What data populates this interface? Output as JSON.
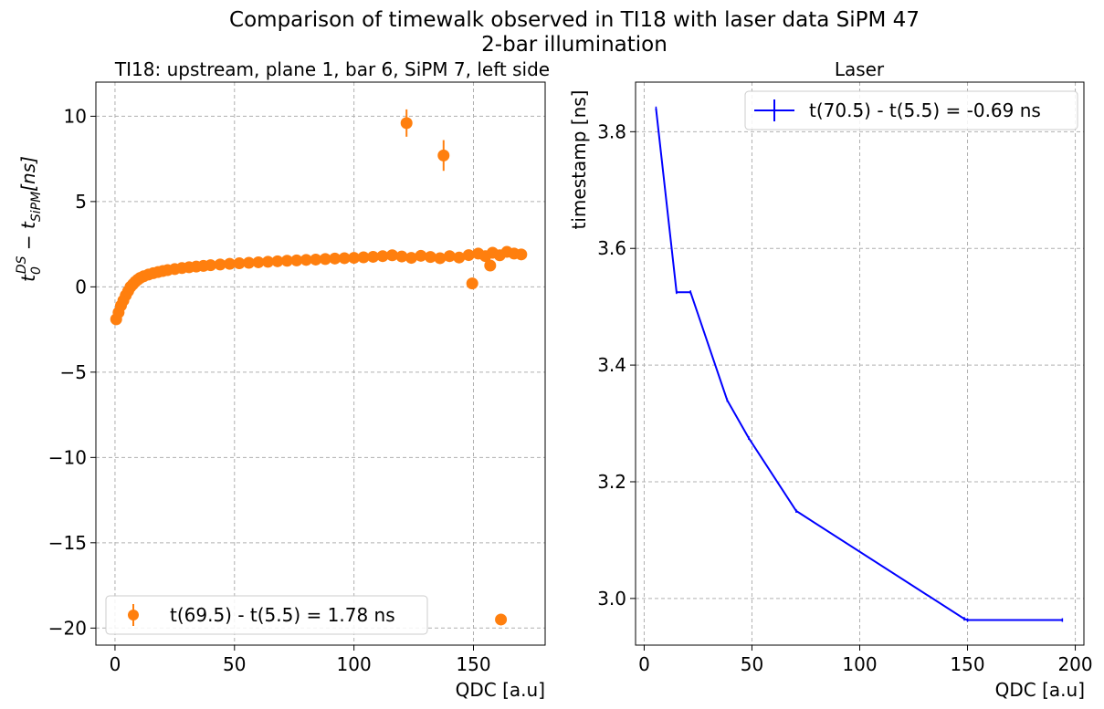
{
  "figure": {
    "title_line1": "Comparison of timewalk observed in TI18 with laser data SiPM 47",
    "title_line2": "2-bar illumination"
  },
  "chart_data": [
    {
      "type": "scatter",
      "title": "TI18: upstream, plane 1, bar 6, SiPM 7, left side",
      "xlabel": "QDC [a.u]",
      "ylabel": "t0^DS − t_SiPM[ns]",
      "xlim": [
        -8,
        180
      ],
      "ylim": [
        -21,
        12
      ],
      "xticks": [
        0,
        50,
        100,
        150
      ],
      "yticks": [
        -20,
        -15,
        -10,
        -5,
        0,
        5,
        10
      ],
      "ytick_labels": [
        "−20",
        "−15",
        "−10",
        "−5",
        "0",
        "5",
        "10"
      ],
      "grid": true,
      "legend": {
        "position": "lower-left",
        "label": "t(69.5) - t(5.5) = 1.78 ns"
      },
      "color": "#ff7f0e",
      "marker": "circle",
      "error_bars": true,
      "points": [
        {
          "x": 0.5,
          "y": -1.9
        },
        {
          "x": 1.5,
          "y": -1.5
        },
        {
          "x": 2.5,
          "y": -1.1
        },
        {
          "x": 3.5,
          "y": -0.8
        },
        {
          "x": 4.5,
          "y": -0.5
        },
        {
          "x": 5.5,
          "y": -0.25
        },
        {
          "x": 6.5,
          "y": 0.0
        },
        {
          "x": 7.5,
          "y": 0.15
        },
        {
          "x": 8.5,
          "y": 0.3
        },
        {
          "x": 9.5,
          "y": 0.42
        },
        {
          "x": 10.5,
          "y": 0.52
        },
        {
          "x": 12,
          "y": 0.62
        },
        {
          "x": 14,
          "y": 0.72
        },
        {
          "x": 16,
          "y": 0.8
        },
        {
          "x": 18,
          "y": 0.87
        },
        {
          "x": 20,
          "y": 0.93
        },
        {
          "x": 22,
          "y": 0.98
        },
        {
          "x": 25,
          "y": 1.04
        },
        {
          "x": 28,
          "y": 1.1
        },
        {
          "x": 31,
          "y": 1.15
        },
        {
          "x": 34,
          "y": 1.19
        },
        {
          "x": 37,
          "y": 1.23
        },
        {
          "x": 40,
          "y": 1.27
        },
        {
          "x": 44,
          "y": 1.31
        },
        {
          "x": 48,
          "y": 1.35
        },
        {
          "x": 52,
          "y": 1.38
        },
        {
          "x": 56,
          "y": 1.41
        },
        {
          "x": 60,
          "y": 1.44
        },
        {
          "x": 64,
          "y": 1.47
        },
        {
          "x": 68,
          "y": 1.5
        },
        {
          "x": 72,
          "y": 1.53
        },
        {
          "x": 76,
          "y": 1.55
        },
        {
          "x": 80,
          "y": 1.58
        },
        {
          "x": 84,
          "y": 1.6
        },
        {
          "x": 88,
          "y": 1.63
        },
        {
          "x": 92,
          "y": 1.66
        },
        {
          "x": 96,
          "y": 1.68
        },
        {
          "x": 100,
          "y": 1.7
        },
        {
          "x": 104,
          "y": 1.73
        },
        {
          "x": 108,
          "y": 1.76
        },
        {
          "x": 112,
          "y": 1.8
        },
        {
          "x": 116,
          "y": 1.85
        },
        {
          "x": 120,
          "y": 1.78
        },
        {
          "x": 124,
          "y": 1.7
        },
        {
          "x": 128,
          "y": 1.82
        },
        {
          "x": 132,
          "y": 1.75
        },
        {
          "x": 136,
          "y": 1.68
        },
        {
          "x": 140,
          "y": 1.8
        },
        {
          "x": 144,
          "y": 1.72
        },
        {
          "x": 148,
          "y": 1.86
        },
        {
          "x": 152,
          "y": 1.95
        },
        {
          "x": 155,
          "y": 1.8
        },
        {
          "x": 158,
          "y": 2.0
        },
        {
          "x": 161,
          "y": 1.85
        },
        {
          "x": 164,
          "y": 2.05
        },
        {
          "x": 167,
          "y": 1.95
        },
        {
          "x": 170,
          "y": 1.9
        },
        {
          "x": 122,
          "y": 9.6
        },
        {
          "x": 137.5,
          "y": 7.7
        },
        {
          "x": 149.5,
          "y": 0.2
        },
        {
          "x": 157,
          "y": 1.25
        },
        {
          "x": 161.5,
          "y": -19.5
        }
      ],
      "error_bar_points": [
        {
          "x": 122,
          "y": 9.6,
          "err": 0.8
        },
        {
          "x": 137.5,
          "y": 7.7,
          "err": 0.9
        }
      ]
    },
    {
      "type": "line",
      "title": "Laser",
      "xlabel": "QDC [a.u]",
      "ylabel": "timestamp [ns]",
      "xlim": [
        -4,
        204
      ],
      "ylim": [
        2.92,
        3.885
      ],
      "xticks": [
        0,
        50,
        100,
        150,
        200
      ],
      "yticks": [
        3.0,
        3.2,
        3.4,
        3.6,
        3.8
      ],
      "ytick_labels": [
        "3.0",
        "3.2",
        "3.4",
        "3.6",
        "3.8"
      ],
      "grid": true,
      "legend": {
        "position": "top-right",
        "label": "t(70.5) - t(5.5) = -0.69 ns"
      },
      "color": "#0000ff",
      "x": [
        5.5,
        15,
        21.5,
        38.5,
        48.5,
        70.5,
        148.5,
        150,
        194
      ],
      "y": [
        3.84,
        3.525,
        3.525,
        3.34,
        3.275,
        3.15,
        2.965,
        2.963,
        2.963
      ]
    }
  ]
}
